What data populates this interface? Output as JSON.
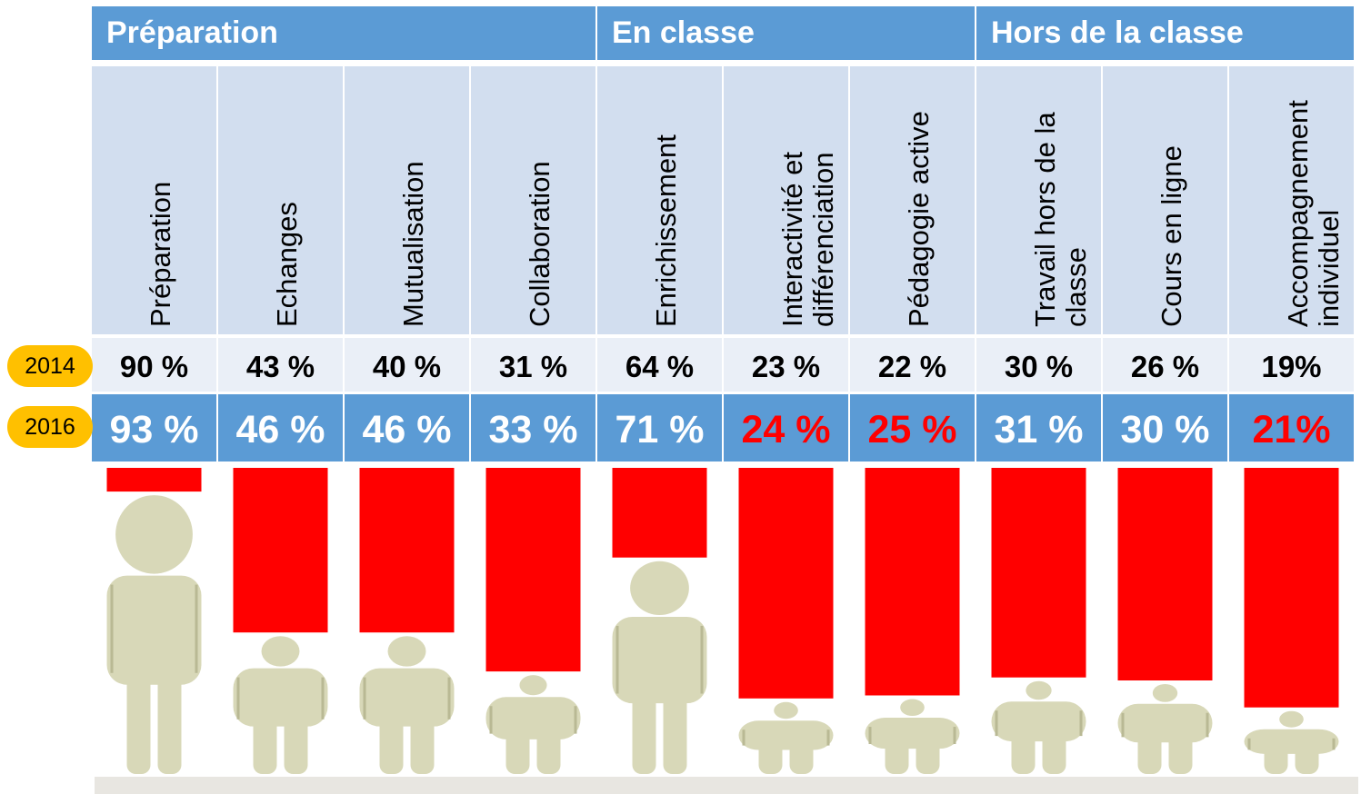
{
  "groups": [
    {
      "label": "Préparation"
    },
    {
      "label": "En classe"
    },
    {
      "label": "Hors de la classe"
    }
  ],
  "year_labels": {
    "y2014": "2014",
    "y2016": "2016"
  },
  "colors": {
    "header_blue": "#5b9bd5",
    "header_light": "#d2deef",
    "row_light": "#eaeff7",
    "bar_red": "#ff0000",
    "pill_yellow": "#ffc000",
    "figure": "#d8d8b8"
  },
  "chart_data": {
    "type": "table",
    "categories": [
      "Préparation",
      "Echanges",
      "Mutualisation",
      "Collaboration",
      "Enrichissement",
      "Interactivité et différenciation",
      "Pédagogie active",
      "Travail hors de la classe",
      "Cours en ligne",
      "Accompagnement individuel"
    ],
    "series": [
      {
        "name": "2014",
        "values": [
          90,
          43,
          40,
          31,
          64,
          23,
          22,
          30,
          26,
          19
        ],
        "labels": [
          "90 %",
          "43 %",
          "40 %",
          "31 %",
          "64 %",
          "23 %",
          "22 %",
          "30 %",
          "26 %",
          "19%"
        ]
      },
      {
        "name": "2016",
        "values": [
          93,
          46,
          46,
          33,
          71,
          24,
          25,
          31,
          30,
          21
        ],
        "labels": [
          "93 %",
          "46 %",
          "46 %",
          "33 %",
          "71 %",
          "24 %",
          "25 %",
          "31 %",
          "30 %",
          "21%"
        ],
        "highlight": [
          false,
          false,
          false,
          false,
          false,
          true,
          true,
          false,
          false,
          true
        ]
      }
    ]
  }
}
